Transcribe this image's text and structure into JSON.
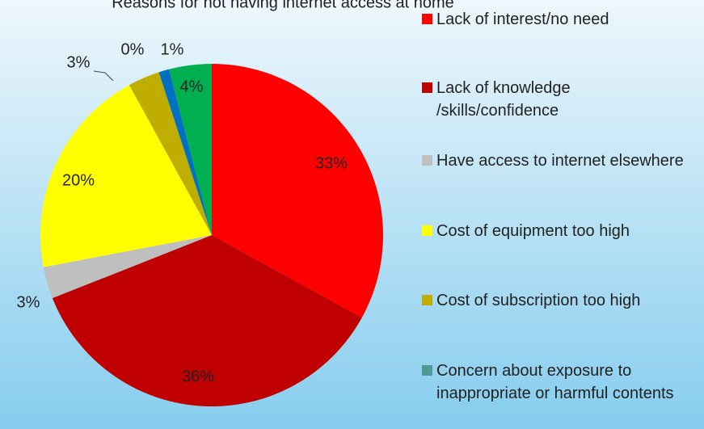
{
  "chart_data": {
    "type": "pie",
    "title": "Reasons for not having internet access at home",
    "categories": [
      "Lack of interest/no need",
      "Lack of knowledge /skills/confidence",
      "Have access to internet elsewhere",
      "Cost of equipment too high",
      "Cost of subscription too high",
      "Concern about exposure to inappropriate or harmful contents",
      null,
      null
    ],
    "values": [
      33,
      36,
      3,
      20,
      3,
      0,
      1,
      4
    ],
    "value_labels": [
      "33%",
      "36%",
      "3%",
      "20%",
      "3%",
      "0%",
      "1%",
      "4%"
    ],
    "colors": [
      "#ff0000",
      "#c00000",
      "#bfbfbf",
      "#ffff00",
      "#bfae00",
      "#4f9a94",
      "#0070c0",
      "#00b050"
    ],
    "legend": "right"
  }
}
